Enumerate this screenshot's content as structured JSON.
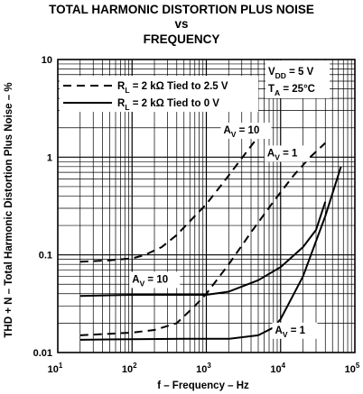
{
  "chart_data": {
    "type": "line",
    "title_lines": [
      "TOTAL HARMONIC DISTORTION PLUS NOISE",
      "vs",
      "FREQUENCY"
    ],
    "xlabel": "f – Frequency – Hz",
    "ylabel": "THD + N – Total Harmonic Distortion Plus Noise – %",
    "x_scale": "log",
    "y_scale": "log",
    "xlim": [
      10,
      100000
    ],
    "ylim": [
      0.01,
      10
    ],
    "x_ticks": [
      {
        "value": 10,
        "base": "10",
        "exp": "1"
      },
      {
        "value": 100,
        "base": "10",
        "exp": "2"
      },
      {
        "value": 1000,
        "base": "10",
        "exp": "3"
      },
      {
        "value": 10000,
        "base": "10",
        "exp": "4"
      },
      {
        "value": 100000,
        "base": "10",
        "exp": "5"
      }
    ],
    "y_ticks": [
      {
        "value": 10,
        "label": "10"
      },
      {
        "value": 1,
        "label": "1"
      },
      {
        "value": 0.1,
        "label": "0.1"
      },
      {
        "value": 0.01,
        "label": "0.01"
      }
    ],
    "grid": true,
    "legend_placement": "top-left",
    "legend": [
      {
        "style": "dashed",
        "pre": "R",
        "sub": "L",
        "post": " = 2 kΩ Tied to 2.5 V"
      },
      {
        "style": "solid",
        "pre": "R",
        "sub": "L",
        "post": " = 2 kΩ Tied to 0 V"
      }
    ],
    "conditions": [
      {
        "pre": "V",
        "sub": "DD",
        "post": " = 5 V"
      },
      {
        "pre": "T",
        "sub": "A",
        "post": " = 25°C"
      }
    ],
    "series": [
      {
        "style": "dashed",
        "gain": "A_V = 10",
        "points": [
          [
            20,
            0.085
          ],
          [
            50,
            0.088
          ],
          [
            100,
            0.092
          ],
          [
            150,
            0.1
          ],
          [
            250,
            0.12
          ],
          [
            400,
            0.16
          ],
          [
            700,
            0.25
          ],
          [
            1000,
            0.33
          ],
          [
            2000,
            0.65
          ],
          [
            4000,
            1.3
          ],
          [
            6500,
            2.1
          ]
        ]
      },
      {
        "style": "dashed",
        "gain": "A_V = 1",
        "points": [
          [
            20,
            0.015
          ],
          [
            100,
            0.016
          ],
          [
            200,
            0.017
          ],
          [
            400,
            0.02
          ],
          [
            700,
            0.03
          ],
          [
            1000,
            0.04
          ],
          [
            2000,
            0.08
          ],
          [
            4000,
            0.17
          ],
          [
            8000,
            0.35
          ],
          [
            15000,
            0.65
          ],
          [
            25000,
            1.0
          ],
          [
            40000,
            1.4
          ]
        ]
      },
      {
        "style": "solid",
        "gain": "A_V = 10",
        "points": [
          [
            20,
            0.038
          ],
          [
            100,
            0.039
          ],
          [
            500,
            0.039
          ],
          [
            1000,
            0.039
          ],
          [
            2000,
            0.042
          ],
          [
            5000,
            0.055
          ],
          [
            10000,
            0.075
          ],
          [
            20000,
            0.12
          ],
          [
            30000,
            0.18
          ],
          [
            40000,
            0.35
          ]
        ]
      },
      {
        "style": "solid",
        "gain": "A_V = 1",
        "points": [
          [
            20,
            0.0135
          ],
          [
            100,
            0.0137
          ],
          [
            500,
            0.0138
          ],
          [
            2000,
            0.0138
          ],
          [
            5000,
            0.015
          ],
          [
            8000,
            0.018
          ],
          [
            10000,
            0.022
          ],
          [
            20000,
            0.06
          ],
          [
            40000,
            0.25
          ],
          [
            65000,
            0.8
          ]
        ]
      }
    ],
    "annotations": [
      {
        "pre": "A",
        "sub": "V",
        "post": " = 10",
        "series": 0
      },
      {
        "pre": "A",
        "sub": "V",
        "post": " = 1",
        "series": 1
      },
      {
        "pre": "A",
        "sub": "V",
        "post": " = 10",
        "series": 2
      },
      {
        "pre": "A",
        "sub": "V",
        "post": " = 1",
        "series": 3
      }
    ]
  }
}
